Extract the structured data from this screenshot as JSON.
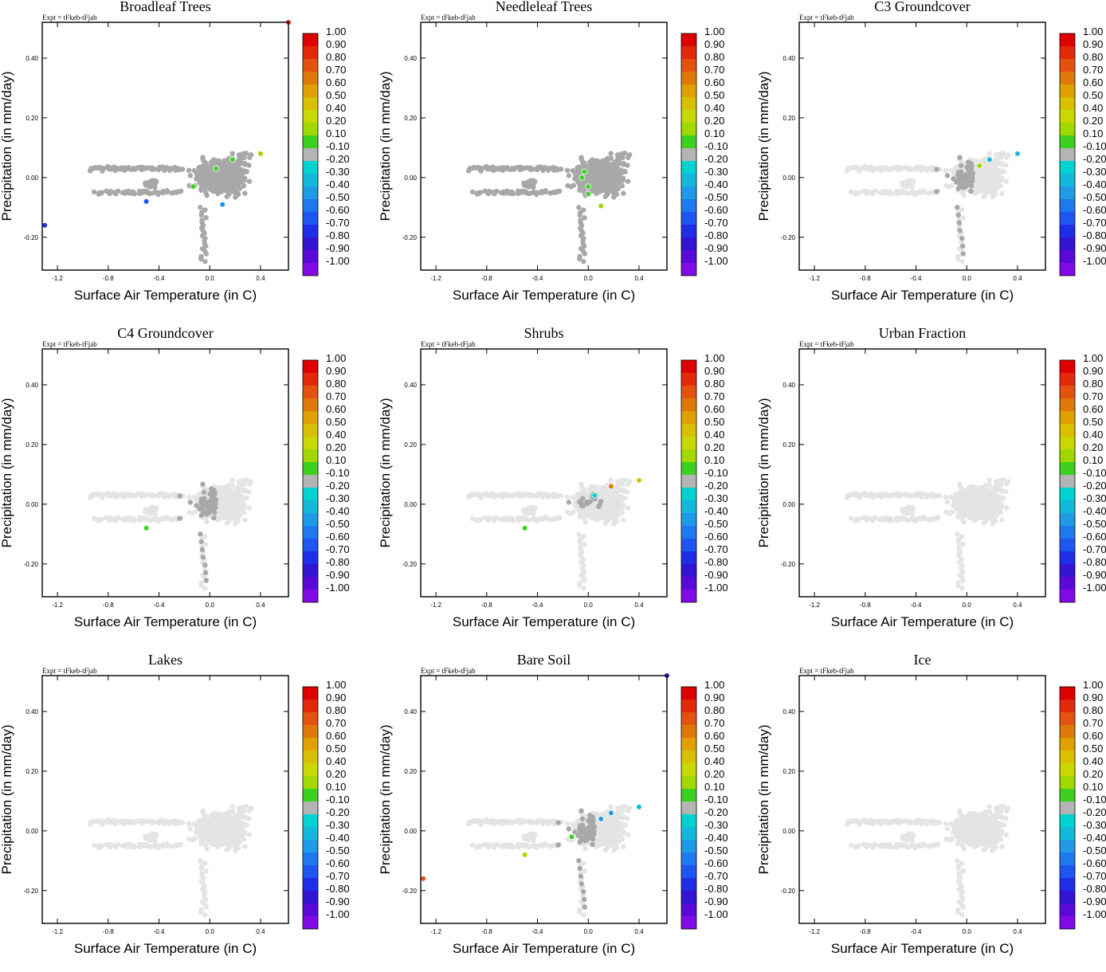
{
  "figure": {
    "expt_label": "Expt = tFkeb-tFjab",
    "xlabel": "Surface Air Temperature (in C)",
    "ylabel": "Precipitation (in mm/day)",
    "x_ticks": [
      "-1.2",
      "-0.8",
      "-0.4",
      "0.0",
      "0.4"
    ],
    "y_ticks": [
      "0.40",
      "0.20",
      "0.00",
      "-0.20"
    ],
    "colorbar_labels": [
      "1.00",
      "0.90",
      "0.80",
      "0.70",
      "0.60",
      "0.50",
      "0.40",
      "0.20",
      "0.10",
      "-0.10",
      "-0.20",
      "-0.30",
      "-0.40",
      "-0.50",
      "-0.60",
      "-0.70",
      "-0.80",
      "-0.90",
      "-1.00"
    ],
    "colorbar_colors": [
      "#dd0000",
      "#e22a0a",
      "#e45210",
      "#e07808",
      "#e0a000",
      "#d8c000",
      "#c8d800",
      "#a0d800",
      "#3cd020",
      "#b4b4b4",
      "#00d2d2",
      "#14b8dc",
      "#1e9ae6",
      "#1e78ee",
      "#1e56f0",
      "#1e2ee6",
      "#3214d2",
      "#5a0ad8",
      "#820ae6"
    ]
  },
  "chart_data": [
    {
      "type": "scatter",
      "title": "Broadleaf Trees",
      "xlabel": "Surface Air Temperature (in C)",
      "ylabel": "Precipitation (in mm/day)",
      "xlim": [
        -1.32,
        0.62
      ],
      "ylim": [
        -0.31,
        0.52
      ],
      "grey_level": "dark",
      "highlights": [
        {
          "x": 0.62,
          "y": 0.52,
          "value": 0.95
        },
        {
          "x": -1.3,
          "y": -0.16,
          "value": -0.75
        },
        {
          "x": -0.5,
          "y": -0.08,
          "value": -0.6
        },
        {
          "x": 0.1,
          "y": -0.09,
          "value": -0.4
        },
        {
          "x": 0.05,
          "y": 0.03,
          "value": 0.15
        },
        {
          "x": -0.13,
          "y": -0.03,
          "value": 0.15
        },
        {
          "x": 0.18,
          "y": 0.06,
          "value": 0.15
        },
        {
          "x": 0.4,
          "y": 0.08,
          "value": 0.3
        }
      ]
    },
    {
      "type": "scatter",
      "title": "Needleleaf Trees",
      "xlabel": "Surface Air Temperature (in C)",
      "ylabel": "Precipitation (in mm/day)",
      "xlim": [
        -1.32,
        0.62
      ],
      "ylim": [
        -0.31,
        0.52
      ],
      "grey_level": "dark",
      "highlights": [
        {
          "x": -0.05,
          "y": 0.0,
          "value": 0.15
        },
        {
          "x": -0.03,
          "y": 0.02,
          "value": 0.15
        },
        {
          "x": 0.0,
          "y": -0.03,
          "value": 0.15
        },
        {
          "x": 0.0,
          "y": -0.055,
          "value": 0.15
        },
        {
          "x": 0.1,
          "y": -0.095,
          "value": 0.3
        }
      ]
    },
    {
      "type": "scatter",
      "title": "C3 Groundcover",
      "xlabel": "Surface Air Temperature (in C)",
      "ylabel": "Precipitation (in mm/day)",
      "xlim": [
        -1.32,
        0.62
      ],
      "ylim": [
        -0.31,
        0.52
      ],
      "grey_level": "medium",
      "highlights": [
        {
          "x": 0.18,
          "y": 0.06,
          "value": -0.35
        },
        {
          "x": 0.4,
          "y": 0.08,
          "value": -0.35
        },
        {
          "x": 0.1,
          "y": 0.04,
          "value": 0.3
        }
      ]
    },
    {
      "type": "scatter",
      "title": "C4 Groundcover",
      "xlabel": "Surface Air Temperature (in C)",
      "ylabel": "Precipitation (in mm/day)",
      "xlim": [
        -1.32,
        0.62
      ],
      "ylim": [
        -0.31,
        0.52
      ],
      "grey_level": "medium",
      "highlights": [
        {
          "x": -0.5,
          "y": -0.08,
          "value": 0.15
        }
      ]
    },
    {
      "type": "scatter",
      "title": "Shrubs",
      "xlabel": "Surface Air Temperature (in C)",
      "ylabel": "Precipitation (in mm/day)",
      "xlim": [
        -1.32,
        0.62
      ],
      "ylim": [
        -0.31,
        0.52
      ],
      "grey_level": "light",
      "highlights": [
        {
          "x": 0.4,
          "y": 0.08,
          "value": 0.45
        },
        {
          "x": 0.18,
          "y": 0.06,
          "value": 0.65
        },
        {
          "x": 0.05,
          "y": 0.03,
          "value": -0.25
        },
        {
          "x": -0.5,
          "y": -0.08,
          "value": 0.15
        }
      ]
    },
    {
      "type": "scatter",
      "title": "Urban Fraction",
      "xlabel": "Surface Air Temperature (in C)",
      "ylabel": "Precipitation (in mm/day)",
      "xlim": [
        -1.32,
        0.62
      ],
      "ylim": [
        -0.31,
        0.52
      ],
      "grey_level": "none",
      "highlights": []
    },
    {
      "type": "scatter",
      "title": "Lakes",
      "xlabel": "Surface Air Temperature (in C)",
      "ylabel": "Precipitation (in mm/day)",
      "xlim": [
        -1.32,
        0.62
      ],
      "ylim": [
        -0.31,
        0.52
      ],
      "grey_level": "none",
      "highlights": []
    },
    {
      "type": "scatter",
      "title": "Bare Soil",
      "xlabel": "Surface Air Temperature (in C)",
      "ylabel": "Precipitation (in mm/day)",
      "xlim": [
        -1.32,
        0.62
      ],
      "ylim": [
        -0.31,
        0.52
      ],
      "grey_level": "medium",
      "highlights": [
        {
          "x": 0.62,
          "y": 0.52,
          "value": -0.85
        },
        {
          "x": -1.3,
          "y": -0.16,
          "value": 0.75
        },
        {
          "x": -0.5,
          "y": -0.08,
          "value": 0.3
        },
        {
          "x": -0.13,
          "y": -0.02,
          "value": 0.15
        },
        {
          "x": 0.1,
          "y": 0.04,
          "value": -0.45
        },
        {
          "x": 0.18,
          "y": 0.06,
          "value": -0.45
        },
        {
          "x": 0.4,
          "y": 0.08,
          "value": -0.35
        }
      ]
    },
    {
      "type": "scatter",
      "title": "Ice",
      "xlabel": "Surface Air Temperature (in C)",
      "ylabel": "Precipitation (in mm/day)",
      "xlim": [
        -1.32,
        0.62
      ],
      "ylim": [
        -0.31,
        0.52
      ],
      "grey_level": "none",
      "highlights": []
    }
  ]
}
